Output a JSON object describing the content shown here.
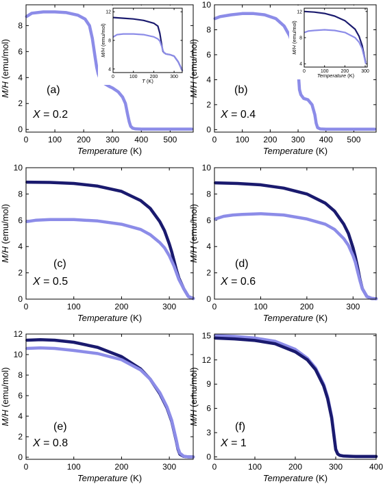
{
  "colors": {
    "dark": "#1a1a6e",
    "light": "#8c8ce8"
  },
  "chart_data": [
    {
      "type": "line",
      "panel": "(a)",
      "composition": "X = 0.2",
      "xlabel": "Temperature (K)",
      "ylabel": "M/H (emu/mol)",
      "xlim": [
        0,
        580
      ],
      "ylim": [
        -0.2,
        9.6
      ],
      "xticks": [
        0,
        100,
        200,
        300,
        400,
        500
      ],
      "yticks": [
        0,
        2,
        4,
        6,
        8
      ],
      "series": [
        {
          "color": "light",
          "x": [
            2,
            20,
            60,
            100,
            140,
            180,
            205,
            220,
            230,
            240,
            245,
            250,
            260,
            275,
            290,
            300,
            320,
            335,
            345,
            352,
            358,
            363,
            370,
            380,
            400,
            500,
            575
          ],
          "y": [
            8.7,
            8.95,
            9.05,
            9.05,
            9.0,
            8.8,
            8.5,
            8.0,
            7.0,
            5.5,
            4.8,
            4.3,
            3.7,
            3.5,
            3.3,
            3.2,
            2.9,
            2.5,
            2.0,
            1.2,
            0.6,
            0.25,
            0.1,
            0.05,
            0.03,
            0.03,
            0.03
          ]
        }
      ],
      "inset": {
        "xlabel": "T (K)",
        "ylabel": "M/H (emu/mol)",
        "xlim": [
          0,
          340
        ],
        "ylim": [
          3.5,
          12.5
        ],
        "xticks": [
          0,
          100,
          200,
          300
        ],
        "yticks": [
          4,
          8,
          12
        ],
        "series": [
          {
            "color": "dark",
            "x": [
              2,
              50,
              100,
              150,
              200,
              220,
              230,
              240,
              245,
              250,
              260,
              280,
              300,
              320,
              340
            ],
            "y": [
              11.2,
              11.1,
              11.0,
              10.8,
              10.4,
              10.0,
              9.0,
              7.2,
              6.5,
              6.3,
              6.1,
              6.0,
              5.8,
              5.0,
              3.8
            ]
          },
          {
            "color": "light",
            "x": [
              2,
              20,
              50,
              100,
              150,
              200,
              220,
              230,
              240,
              245,
              250,
              260,
              280,
              300,
              320,
              340
            ],
            "y": [
              8.5,
              8.8,
              8.9,
              8.9,
              8.8,
              8.5,
              8.2,
              7.9,
              7.1,
              6.6,
              6.3,
              6.1,
              6.0,
              5.8,
              5.0,
              3.8
            ]
          }
        ]
      }
    },
    {
      "type": "line",
      "panel": "(b)",
      "composition": "X = 0.4",
      "xlabel": "Temperature (K)",
      "ylabel": "M/H (emu/mol)",
      "xlim": [
        0,
        580
      ],
      "ylim": [
        -0.2,
        10
      ],
      "xticks": [
        0,
        100,
        200,
        300,
        400,
        500
      ],
      "yticks": [
        0,
        2,
        4,
        6,
        8,
        10
      ],
      "series": [
        {
          "color": "light",
          "x": [
            2,
            20,
            60,
            100,
            140,
            180,
            220,
            250,
            270,
            280,
            290,
            300,
            305,
            310,
            320,
            335,
            350,
            360,
            365,
            370,
            380,
            400,
            500,
            575
          ],
          "y": [
            8.9,
            9.05,
            9.2,
            9.3,
            9.3,
            9.2,
            8.9,
            8.3,
            7.5,
            6.8,
            5.8,
            4.8,
            3.2,
            2.8,
            2.5,
            2.4,
            2.0,
            1.2,
            0.5,
            0.15,
            0.05,
            0.03,
            0.03,
            0.03
          ]
        }
      ],
      "inset": {
        "xlabel": "Temperature (K)",
        "ylabel": "M/H (emu/mol)",
        "xlim": [
          0,
          310
        ],
        "ylim": [
          3.5,
          12.5
        ],
        "xticks": [
          0,
          100,
          200,
          300
        ],
        "yticks": [
          4,
          8,
          12
        ],
        "series": [
          {
            "color": "dark",
            "x": [
              2,
              50,
              100,
              150,
              200,
              250,
              270,
              285,
              295,
              302
            ],
            "y": [
              12.0,
              11.9,
              11.7,
              11.3,
              10.6,
              9.3,
              8.2,
              6.8,
              5.3,
              4.2
            ]
          },
          {
            "color": "light",
            "x": [
              2,
              20,
              50,
              100,
              150,
              200,
              250,
              270,
              285,
              295,
              302
            ],
            "y": [
              8.8,
              9.0,
              9.1,
              9.2,
              9.1,
              8.8,
              8.0,
              7.3,
              6.3,
              5.1,
              4.1
            ]
          }
        ]
      }
    },
    {
      "type": "line",
      "panel": "(c)",
      "composition": "X = 0.5",
      "xlabel": "Temperature (K)",
      "ylabel": "M/H (emu/mol)",
      "xlim": [
        0,
        350
      ],
      "ylim": [
        0,
        10
      ],
      "xticks": [
        0,
        100,
        200,
        300
      ],
      "yticks": [
        0,
        2,
        4,
        6,
        8,
        10
      ],
      "series": [
        {
          "color": "dark",
          "x": [
            2,
            50,
            100,
            150,
            200,
            240,
            260,
            280,
            290,
            300,
            305,
            310,
            315,
            320,
            330,
            340,
            350
          ],
          "y": [
            8.9,
            8.88,
            8.8,
            8.6,
            8.2,
            7.5,
            6.9,
            5.9,
            5.2,
            4.2,
            3.6,
            2.9,
            2.2,
            1.6,
            0.8,
            0.2,
            0.05
          ]
        },
        {
          "color": "light",
          "x": [
            2,
            20,
            50,
            100,
            150,
            200,
            240,
            260,
            280,
            290,
            300,
            305,
            310,
            315,
            320,
            330,
            340,
            350
          ],
          "y": [
            5.9,
            6.0,
            6.05,
            6.05,
            5.95,
            5.7,
            5.3,
            4.9,
            4.3,
            3.9,
            3.3,
            2.9,
            2.5,
            2.0,
            1.5,
            0.8,
            0.2,
            0.05
          ]
        }
      ]
    },
    {
      "type": "line",
      "panel": "(d)",
      "composition": "X = 0.6",
      "xlabel": "Temperature (K)",
      "ylabel": "M/H (emu/mol)",
      "xlim": [
        0,
        350
      ],
      "ylim": [
        0,
        10
      ],
      "xticks": [
        0,
        100,
        200,
        300
      ],
      "yticks": [
        0,
        2,
        4,
        6,
        8,
        10
      ],
      "series": [
        {
          "color": "dark",
          "x": [
            2,
            50,
            100,
            150,
            200,
            240,
            260,
            280,
            290,
            300,
            305,
            310,
            315,
            320,
            330,
            340,
            350
          ],
          "y": [
            8.85,
            8.8,
            8.7,
            8.45,
            8.0,
            7.3,
            6.7,
            5.7,
            5.0,
            3.9,
            3.2,
            2.4,
            1.5,
            0.8,
            0.2,
            0.05,
            0.03
          ]
        },
        {
          "color": "light",
          "x": [
            2,
            20,
            40,
            60,
            100,
            150,
            200,
            240,
            260,
            280,
            290,
            300,
            305,
            310,
            315,
            320,
            330,
            340,
            350
          ],
          "y": [
            6.1,
            6.3,
            6.4,
            6.45,
            6.5,
            6.4,
            6.1,
            5.7,
            5.3,
            4.6,
            4.1,
            3.3,
            2.8,
            2.1,
            1.4,
            0.8,
            0.2,
            0.05,
            0.03
          ]
        }
      ]
    },
    {
      "type": "line",
      "panel": "(e)",
      "composition": "X = 0.8",
      "xlabel": "Temperature (K)",
      "ylabel": "M/H (emu/mol)",
      "xlim": [
        0,
        350
      ],
      "ylim": [
        -0.2,
        12
      ],
      "xticks": [
        0,
        100,
        200,
        300
      ],
      "yticks": [
        0,
        2,
        4,
        6,
        8,
        10,
        12
      ],
      "series": [
        {
          "color": "dark",
          "x": [
            2,
            30,
            60,
            100,
            150,
            200,
            240,
            260,
            280,
            295,
            305,
            310,
            315,
            318,
            322,
            330,
            340,
            350
          ],
          "y": [
            11.4,
            11.45,
            11.4,
            11.2,
            10.7,
            9.8,
            8.6,
            7.6,
            6.2,
            4.8,
            3.5,
            2.5,
            1.5,
            0.8,
            0.3,
            0.08,
            0.03,
            0.03
          ]
        },
        {
          "color": "light",
          "x": [
            2,
            30,
            60,
            100,
            150,
            200,
            240,
            260,
            280,
            295,
            305,
            310,
            315,
            318,
            322,
            330,
            340,
            350
          ],
          "y": [
            10.6,
            10.65,
            10.6,
            10.4,
            10.1,
            9.5,
            8.5,
            7.6,
            6.3,
            4.9,
            3.6,
            2.6,
            1.6,
            0.9,
            0.4,
            0.1,
            0.03,
            0.03
          ]
        }
      ]
    },
    {
      "type": "line",
      "panel": "(f)",
      "composition": "X = 1",
      "xlabel": "Temperature (K)",
      "ylabel": "M/H (emu/mol)",
      "xlim": [
        0,
        400
      ],
      "ylim": [
        -0.3,
        15.2
      ],
      "xticks": [
        0,
        100,
        200,
        300,
        400
      ],
      "yticks": [
        0,
        3,
        6,
        9,
        12,
        15
      ],
      "series": [
        {
          "color": "light",
          "x": [
            2,
            50,
            100,
            150,
            200,
            230,
            250,
            270,
            280,
            290,
            295,
            300,
            305,
            310,
            320,
            350,
            400
          ],
          "y": [
            15.0,
            14.9,
            14.7,
            14.3,
            13.3,
            12.2,
            11.0,
            9.0,
            7.4,
            5.0,
            3.0,
            1.0,
            0.4,
            0.2,
            0.1,
            0.05,
            0.05
          ]
        },
        {
          "color": "dark",
          "x": [
            2,
            50,
            100,
            150,
            200,
            230,
            250,
            270,
            280,
            290,
            295,
            300,
            305,
            310,
            320,
            350,
            400
          ],
          "y": [
            14.7,
            14.6,
            14.4,
            14.0,
            13.0,
            12.0,
            10.8,
            8.8,
            7.2,
            4.8,
            2.8,
            0.9,
            0.35,
            0.18,
            0.1,
            0.05,
            0.05
          ]
        }
      ]
    }
  ]
}
